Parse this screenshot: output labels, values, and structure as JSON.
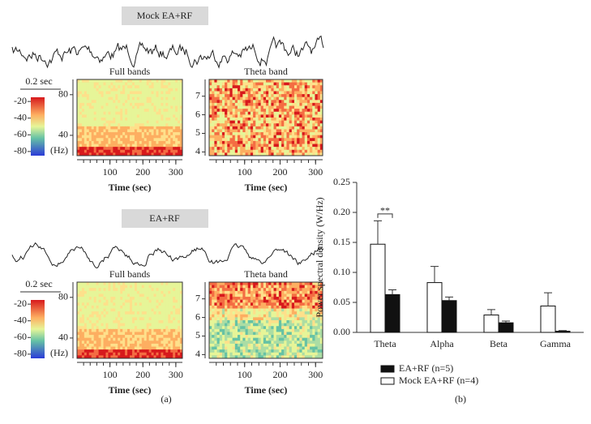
{
  "panel_a": {
    "label": "(a)",
    "recordings": [
      {
        "condition": "Mock EA+RF",
        "scale_bar": "0.2 sec",
        "colorbar": {
          "clim": [
            -15,
            -85
          ],
          "ticks": [
            -20,
            -40,
            -60,
            -80
          ]
        },
        "full_bands": {
          "title": "Full bands",
          "xlabel": "Time (sec)",
          "xlim": [
            0,
            320
          ],
          "xticks": [
            100,
            200,
            300
          ],
          "ylim": [
            20,
            95
          ],
          "yticks": [
            40,
            80
          ],
          "unit": "(Hz)"
        },
        "theta_band": {
          "title": "Theta band",
          "xlabel": "Time (sec)",
          "xlim": [
            0,
            320
          ],
          "xticks": [
            100,
            200,
            300
          ],
          "ylim": [
            3.8,
            7.9
          ],
          "yticks": [
            4,
            5,
            6,
            7
          ]
        }
      },
      {
        "condition": "EA+RF",
        "scale_bar": "0.2 sec",
        "colorbar": {
          "clim": [
            -15,
            -85
          ],
          "ticks": [
            -20,
            -40,
            -60,
            -80
          ]
        },
        "full_bands": {
          "title": "Full bands",
          "xlabel": "Time (sec)",
          "xlim": [
            0,
            320
          ],
          "xticks": [
            100,
            200,
            300
          ],
          "ylim": [
            20,
            95
          ],
          "yticks": [
            40,
            80
          ],
          "unit": "(Hz)"
        },
        "theta_band": {
          "title": "Theta band",
          "xlabel": "Time (sec)",
          "xlim": [
            0,
            320
          ],
          "xticks": [
            100,
            200,
            300
          ],
          "ylim": [
            3.8,
            7.9
          ],
          "yticks": [
            4,
            5,
            6,
            7
          ]
        }
      }
    ]
  },
  "chart_data": {
    "type": "bar",
    "label": "(b)",
    "ylabel": "Power spectral density (W/Hz)",
    "categories": [
      "Theta",
      "Alpha",
      "Beta",
      "Gamma"
    ],
    "series": [
      {
        "name": "EA+RF (n=5)",
        "color": "#111111",
        "values": [
          0.063,
          0.053,
          0.016,
          0.002
        ],
        "errors": [
          0.008,
          0.006,
          0.003,
          0.001
        ]
      },
      {
        "name": "Mock EA+RF (n=4)",
        "color": "#ffffff",
        "values": [
          0.147,
          0.083,
          0.029,
          0.044
        ],
        "errors": [
          0.039,
          0.027,
          0.009,
          0.022
        ]
      }
    ],
    "annotation": "**",
    "ylim": [
      0,
      0.25
    ],
    "yticks": [
      {
        "value": 0,
        "label": "0.00"
      },
      0.05,
      {
        "value": 0.1,
        "label": "0.10"
      },
      0.15,
      {
        "value": 0.2,
        "label": "0.20"
      },
      0.25
    ],
    "legend": "bottom"
  }
}
